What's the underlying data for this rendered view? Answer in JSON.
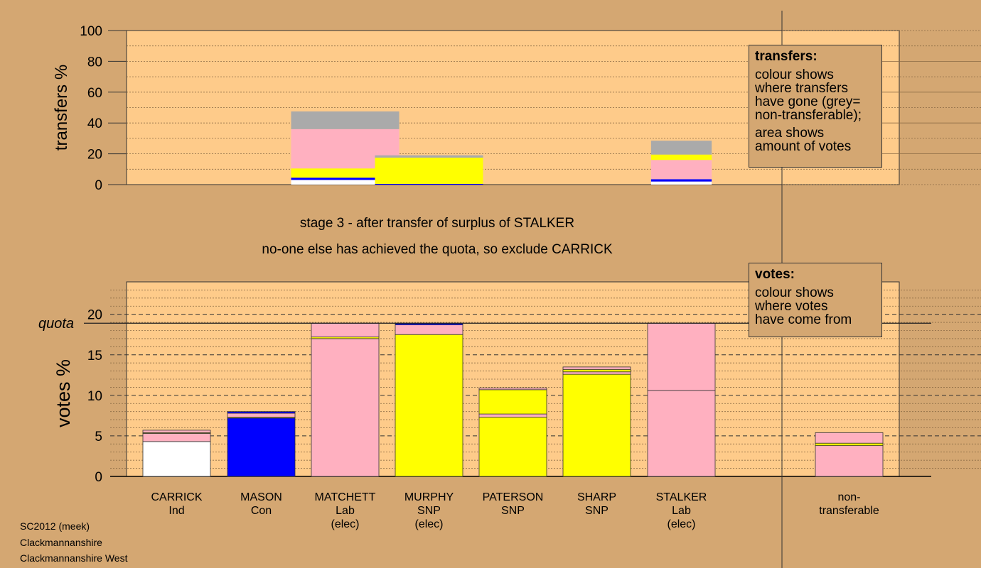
{
  "title_lines": [
    "stage 3 - after transfer of surplus of STALKER",
    "no-one else has achieved the quota, so exclude CARRICK"
  ],
  "info_lines": [
    "SC2012 (meek)",
    "Clackmannanshire",
    "Clackmannanshire West"
  ],
  "legend_transfers": {
    "title": "transfers:",
    "lines": [
      "colour shows",
      "where transfers",
      "have gone (grey=",
      "non-transferable);"
    ],
    "lines2": [
      "area shows",
      "amount of votes"
    ]
  },
  "legend_votes": {
    "title": "votes:",
    "lines": [
      "colour shows",
      "where votes",
      "have come from"
    ]
  },
  "colors": {
    "background": "#d4a772",
    "plot_bg": "#fecb8a",
    "Ind": "#ffffff",
    "Con": "#0000ff",
    "Lab": "#ffb0c0",
    "SNP": "#ffff00",
    "grey": "#aaaaaa",
    "edge": "#333333"
  },
  "chart_data": [
    {
      "type": "bar",
      "subtype": "stacked-width-proportional",
      "title": "transfers",
      "ylabel": "transfers %",
      "ylim": [
        0,
        100
      ],
      "yticks": [
        0,
        20,
        40,
        60,
        80,
        100
      ],
      "grid": true,
      "bars": [
        {
          "column": "MATCHETT",
          "width_pct": 18.9,
          "segments": [
            {
              "party": "Ind",
              "value": 3
            },
            {
              "party": "Con",
              "value": 1.5
            },
            {
              "party": "SNP",
              "value": 6
            },
            {
              "party": "Lab",
              "value": 25.5
            },
            {
              "party": "grey",
              "value": 11.5
            }
          ]
        },
        {
          "column": "MURPHY",
          "width_pct": 18.9,
          "segments": [
            {
              "party": "Con",
              "value": 0.5
            },
            {
              "party": "SNP",
              "value": 17
            },
            {
              "party": "grey",
              "value": 1.5
            }
          ]
        },
        {
          "column": "STALKER",
          "width_pct": 10.6,
          "segments": [
            {
              "party": "Ind",
              "value": 2
            },
            {
              "party": "Con",
              "value": 1.5
            },
            {
              "party": "Lab",
              "value": 12.5
            },
            {
              "party": "SNP",
              "value": 3.5
            },
            {
              "party": "grey",
              "value": 9
            }
          ]
        }
      ]
    },
    {
      "type": "bar",
      "subtype": "stacked",
      "title": "votes",
      "ylabel": "votes %",
      "ylim": [
        0,
        24
      ],
      "yticks": [
        0,
        5,
        10,
        15,
        20
      ],
      "quota": 18.9,
      "quota_label": "quota",
      "grid": true,
      "categories": [
        "CARRICK",
        "MASON",
        "MATCHETT",
        "MURPHY",
        "PATERSON",
        "SHARP",
        "STALKER",
        "non-transferable"
      ],
      "category_labels": [
        [
          "CARRICK",
          "Ind"
        ],
        [
          "MASON",
          "Con"
        ],
        [
          "MATCHETT",
          "Lab",
          "(elec)"
        ],
        [
          "MURPHY",
          "SNP",
          "(elec)"
        ],
        [
          "PATERSON",
          "SNP"
        ],
        [
          "SHARP",
          "SNP"
        ],
        [
          "STALKER",
          "Lab",
          "(elec)"
        ],
        [
          "non-",
          "transferable"
        ]
      ],
      "series_segments": [
        [
          {
            "party": "Ind",
            "value": 4.3
          },
          {
            "party": "Lab",
            "value": 1.0
          },
          {
            "party": "SNP",
            "value": 0.1
          },
          {
            "party": "Lab",
            "value": 0.3
          }
        ],
        [
          {
            "party": "Con",
            "value": 7.2
          },
          {
            "party": "SNP",
            "value": 0.1
          },
          {
            "party": "Lab",
            "value": 0.5
          },
          {
            "party": "Con",
            "value": 0.2
          }
        ],
        [
          {
            "party": "Lab",
            "value": 17.0
          },
          {
            "party": "SNP",
            "value": 0.2
          },
          {
            "party": "Lab",
            "value": 1.7
          }
        ],
        [
          {
            "party": "SNP",
            "value": 17.5
          },
          {
            "party": "Lab",
            "value": 1.2
          },
          {
            "party": "Con",
            "value": 0.2
          }
        ],
        [
          {
            "party": "SNP",
            "value": 7.3
          },
          {
            "party": "Lab",
            "value": 0.4
          },
          {
            "party": "SNP",
            "value": 3.0
          },
          {
            "party": "Lab",
            "value": 0.2
          }
        ],
        [
          {
            "party": "SNP",
            "value": 12.6
          },
          {
            "party": "Lab",
            "value": 0.3
          },
          {
            "party": "SNP",
            "value": 0.3
          },
          {
            "party": "Lab",
            "value": 0.3
          }
        ],
        [
          {
            "party": "Lab",
            "value": 10.6
          },
          {
            "party": "Lab",
            "value": 8.3
          }
        ],
        [
          {
            "party": "Lab",
            "value": 3.8
          },
          {
            "party": "SNP",
            "value": 0.3
          },
          {
            "party": "Lab",
            "value": 1.3
          }
        ]
      ]
    }
  ]
}
